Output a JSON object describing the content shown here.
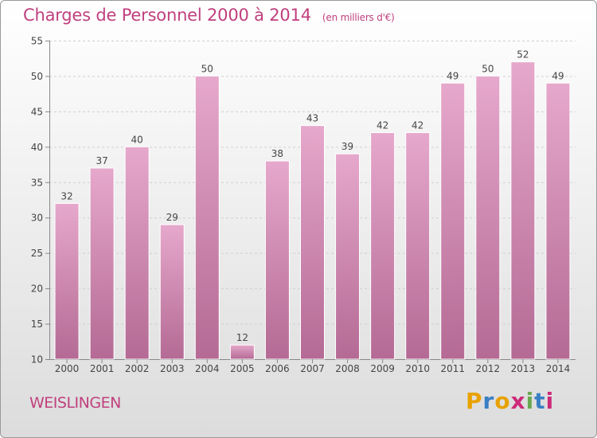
{
  "header": {
    "title": "Charges de Personnel 2000 à 2014",
    "subtitle": "(en milliers d'€)"
  },
  "footer": {
    "commune": "WEISLINGEN",
    "logo_letters": [
      "P",
      "r",
      "o",
      "x",
      "i",
      "t",
      "i"
    ],
    "logo_colors": [
      "#e8a200",
      "#3a7fc4",
      "#e8a200",
      "#cc2b7a",
      "#6aa84f",
      "#3a7fc4",
      "#cc2b7a"
    ]
  },
  "chart_data": {
    "type": "bar",
    "categories": [
      "2000",
      "2001",
      "2002",
      "2003",
      "2004",
      "2005",
      "2006",
      "2007",
      "2008",
      "2009",
      "2010",
      "2011",
      "2012",
      "2013",
      "2014"
    ],
    "values": [
      32,
      37,
      40,
      29,
      50,
      12,
      38,
      43,
      39,
      42,
      42,
      49,
      50,
      52,
      49
    ],
    "data_labels": [
      "32",
      "37",
      "40",
      "29",
      "50",
      "12",
      "38",
      "43",
      "39",
      "42",
      "42",
      "49",
      "50",
      "52",
      "49"
    ],
    "title": "Charges de Personnel 2000 à 2014",
    "subtitle": "(en milliers d'€)",
    "xlabel": "",
    "ylabel": "",
    "ylim": [
      10,
      55
    ],
    "yticks": [
      10,
      15,
      20,
      25,
      30,
      35,
      40,
      45,
      50,
      55
    ],
    "grid": true,
    "bar_color_top": "#e6a8cc",
    "bar_color_bottom": "#b46a94",
    "text_color": "#c0407e"
  }
}
